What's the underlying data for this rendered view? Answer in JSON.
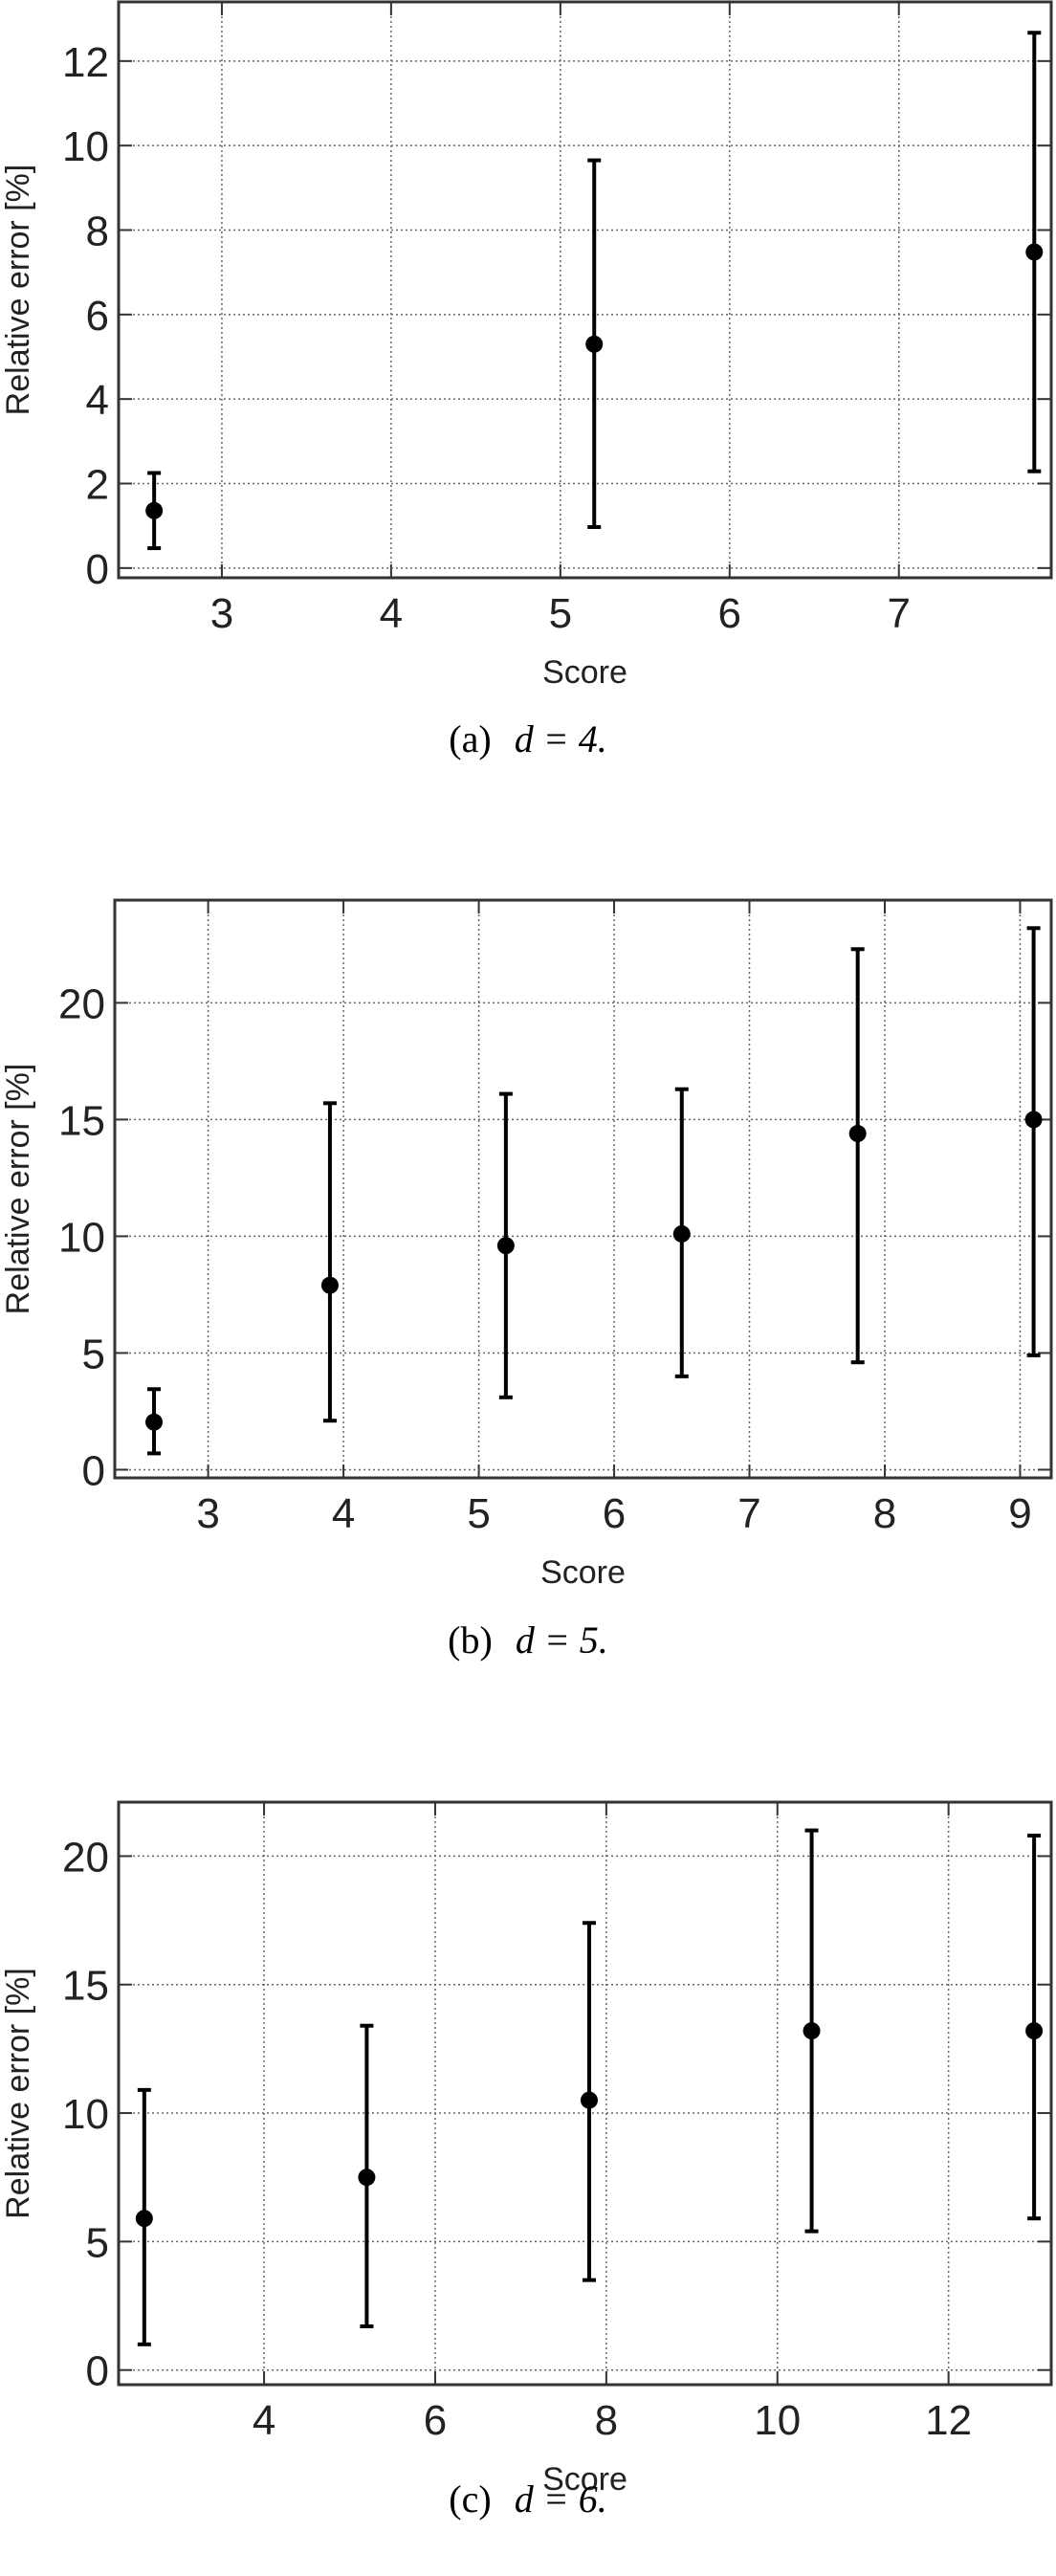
{
  "chart_data": [
    {
      "type": "errorbar",
      "xlabel": "Score",
      "ylabel": "Relative error [%]",
      "label": "(a)",
      "caption": "d = 4.",
      "x": [
        2.6,
        5.2,
        7.8
      ],
      "y": [
        1.36,
        5.3,
        7.48
      ],
      "lower": [
        0.47,
        0.97,
        2.29
      ],
      "upper": [
        2.25,
        9.65,
        12.67
      ],
      "xlim": [
        2.39,
        7.9
      ],
      "ylim": [
        -0.23,
        13.4
      ],
      "xticks": [
        3,
        4,
        5,
        6,
        7
      ],
      "yticks": [
        0,
        2,
        4,
        6,
        8,
        10,
        12
      ],
      "grid": true,
      "color": "#000000"
    },
    {
      "type": "errorbar",
      "xlabel": "Score",
      "ylabel": "Relative error [%]",
      "label": "(b)",
      "caption": "d = 5.",
      "x": [
        2.6,
        3.9,
        5.2,
        6.5,
        7.8,
        9.1
      ],
      "y": [
        2.04,
        7.9,
        9.6,
        10.1,
        14.4,
        15.0
      ],
      "lower": [
        0.7,
        2.1,
        3.1,
        4.0,
        4.6,
        4.9
      ],
      "upper": [
        3.45,
        15.7,
        16.1,
        16.3,
        22.3,
        23.2
      ],
      "xlim": [
        2.31,
        9.23
      ],
      "ylim": [
        -0.35,
        24.4
      ],
      "xticks": [
        3,
        4,
        5,
        6,
        7,
        8,
        9
      ],
      "yticks": [
        0,
        5,
        10,
        15,
        20
      ],
      "grid": true,
      "color": "#000000"
    },
    {
      "type": "errorbar",
      "xlabel": "Score",
      "ylabel": "Relative error [%]",
      "label": "(c)",
      "caption": "d = 6.",
      "x": [
        2.6,
        5.2,
        7.8,
        10.4,
        13.0
      ],
      "y": [
        5.9,
        7.5,
        10.5,
        13.2,
        13.2
      ],
      "lower": [
        1.0,
        1.7,
        3.5,
        5.4,
        5.9
      ],
      "upper": [
        10.9,
        13.4,
        17.4,
        21.0,
        20.8
      ],
      "xlim": [
        2.3,
        13.2
      ],
      "ylim": [
        -0.57,
        22.1
      ],
      "xticks": [
        4,
        6,
        8,
        10,
        12
      ],
      "yticks": [
        0,
        5,
        10,
        15,
        20
      ],
      "grid": true,
      "color": "#000000"
    }
  ]
}
